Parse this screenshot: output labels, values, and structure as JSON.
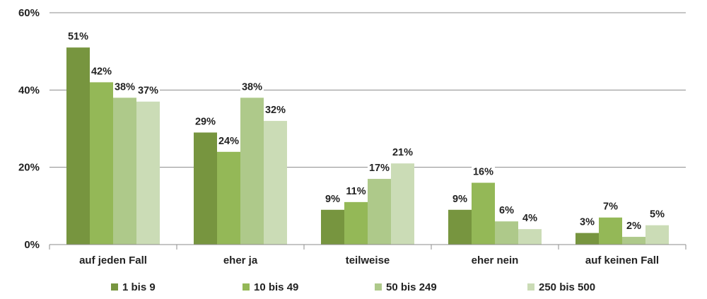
{
  "chart_data": {
    "type": "bar",
    "categories": [
      "auf jeden Fall",
      "eher ja",
      "teilweise",
      "eher nein",
      "auf keinen Fall"
    ],
    "series": [
      {
        "name": "1 bis 9",
        "values": [
          51,
          29,
          9,
          9,
          3
        ],
        "labels": [
          "51%",
          "29%",
          "9%",
          "9%",
          "3%"
        ],
        "color": "#77953f"
      },
      {
        "name": "10 bis 49",
        "values": [
          42,
          24,
          11,
          16,
          7
        ],
        "labels": [
          "42%",
          "24%",
          "11%",
          "16%",
          "7%"
        ],
        "color": "#94b857"
      },
      {
        "name": "50 bis 249",
        "values": [
          38,
          38,
          17,
          6,
          2
        ],
        "labels": [
          "38%",
          "38%",
          "17%",
          "6%",
          "2%"
        ],
        "color": "#aec98a"
      },
      {
        "name": "250 bis 500",
        "values": [
          37,
          32,
          21,
          4,
          5
        ],
        "labels": [
          "37%",
          "32%",
          "21%",
          "4%",
          "5%"
        ],
        "color": "#cbdcb6"
      }
    ],
    "ylim": [
      0,
      60
    ],
    "yticks": [
      0,
      20,
      40,
      60
    ],
    "ytick_labels": [
      "0%",
      "20%",
      "40%",
      "60%"
    ],
    "grid": true,
    "legend_position": "bottom"
  }
}
